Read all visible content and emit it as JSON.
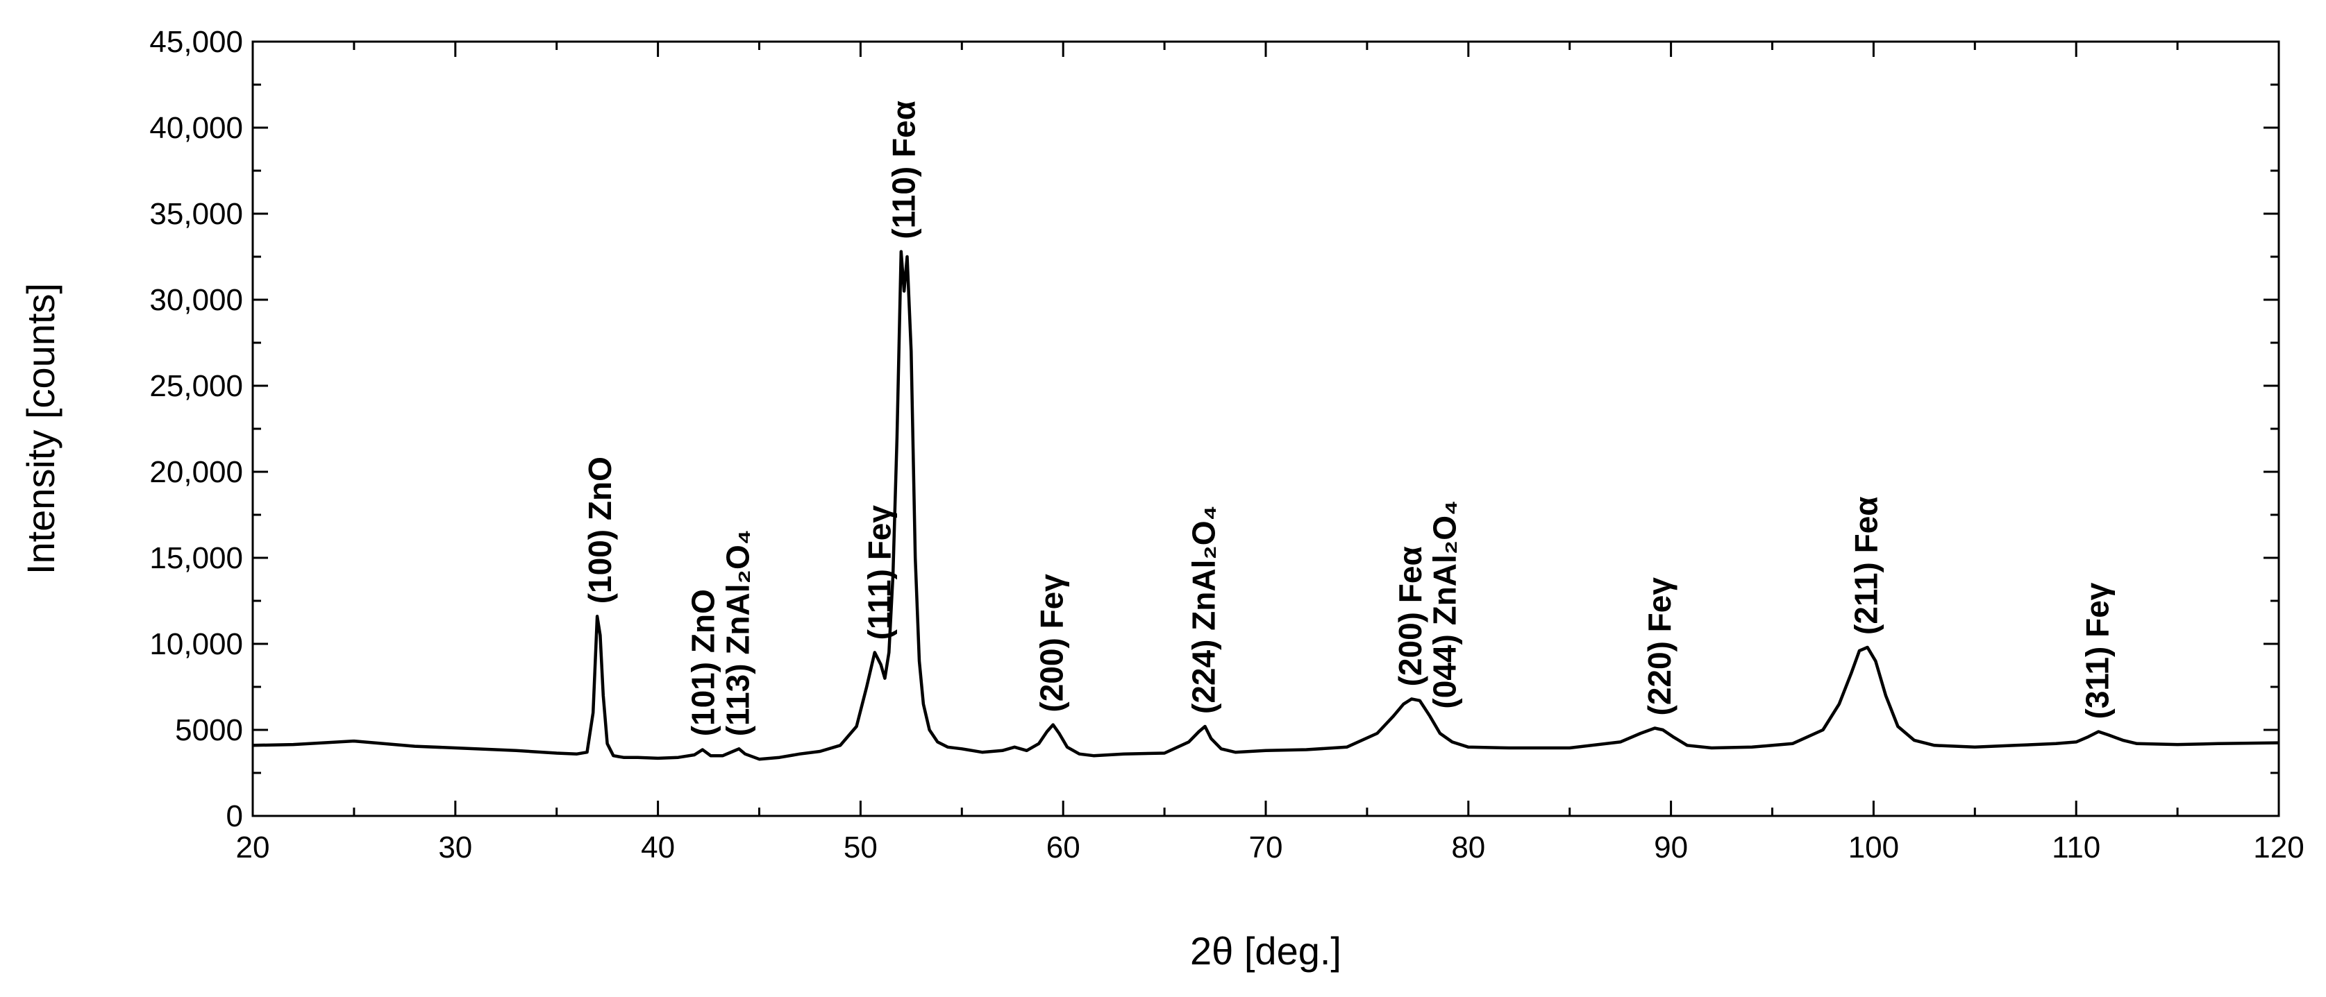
{
  "chart_data": {
    "type": "line",
    "title": "",
    "xlabel": "2θ [deg.]",
    "ylabel": "Intensity [counts]",
    "xlim": [
      20,
      120
    ],
    "ylim": [
      0,
      45000
    ],
    "x_ticks": [
      20,
      30,
      40,
      50,
      60,
      70,
      80,
      90,
      100,
      110,
      120
    ],
    "x_tick_labels": [
      "20",
      "30",
      "40",
      "50",
      "60",
      "70",
      "80",
      "90",
      "100",
      "110",
      "120"
    ],
    "y_ticks": [
      0,
      5000,
      10000,
      15000,
      20000,
      25000,
      30000,
      35000,
      40000,
      45000
    ],
    "y_tick_labels": [
      "0",
      "5000",
      "10,000",
      "15,000",
      "20,000",
      "25,000",
      "30,000",
      "35,000",
      "40,000",
      "45,000"
    ],
    "grid": false,
    "legend": "none",
    "series": [
      {
        "color": "#000000",
        "x": [
          20,
          22,
          25,
          28,
          30,
          33,
          35,
          36,
          36.5,
          36.8,
          37.0,
          37.15,
          37.3,
          37.5,
          37.8,
          38.3,
          39,
          40,
          41,
          41.8,
          42.2,
          42.6,
          43.2,
          43.7,
          44.0,
          44.3,
          45,
          46,
          47,
          48,
          49,
          49.8,
          50.3,
          50.7,
          51.0,
          51.2,
          51.4,
          51.6,
          51.8,
          52.0,
          52.15,
          52.3,
          52.5,
          52.7,
          52.9,
          53.1,
          53.4,
          53.8,
          54.3,
          55,
          56,
          57,
          57.6,
          58.2,
          58.8,
          59.2,
          59.5,
          59.8,
          60.2,
          60.8,
          61.5,
          63,
          65,
          66.2,
          66.7,
          67.0,
          67.3,
          67.8,
          68.5,
          70,
          72,
          74,
          75.5,
          76.3,
          76.8,
          77.2,
          77.6,
          78.1,
          78.6,
          79.2,
          80,
          82,
          85,
          87.5,
          88.5,
          89.2,
          89.6,
          90.1,
          90.8,
          92,
          94,
          96,
          97.5,
          98.3,
          98.9,
          99.3,
          99.7,
          100.1,
          100.6,
          101.2,
          102,
          103,
          105,
          107,
          109,
          110,
          110.6,
          111.1,
          111.6,
          112.3,
          113,
          115,
          117,
          120
        ],
        "y": [
          4100,
          4150,
          4350,
          4050,
          3950,
          3800,
          3650,
          3600,
          3700,
          6000,
          11600,
          10500,
          7000,
          4200,
          3500,
          3400,
          3400,
          3350,
          3400,
          3550,
          3850,
          3500,
          3500,
          3750,
          3900,
          3600,
          3300,
          3400,
          3600,
          3750,
          4100,
          5200,
          7500,
          9500,
          8800,
          8000,
          9500,
          14000,
          22000,
          32800,
          30500,
          32500,
          27000,
          15000,
          9000,
          6500,
          5000,
          4300,
          4000,
          3900,
          3700,
          3800,
          4000,
          3800,
          4200,
          4900,
          5300,
          4800,
          4000,
          3600,
          3500,
          3600,
          3650,
          4300,
          4900,
          5200,
          4500,
          3900,
          3700,
          3800,
          3850,
          4000,
          4800,
          5800,
          6500,
          6800,
          6700,
          5800,
          4800,
          4300,
          4000,
          3950,
          3950,
          4300,
          4800,
          5100,
          5000,
          4600,
          4100,
          3950,
          4000,
          4200,
          5000,
          6500,
          8300,
          9600,
          9800,
          9000,
          7000,
          5200,
          4400,
          4100,
          4000,
          4100,
          4200,
          4300,
          4600,
          4900,
          4700,
          4400,
          4200,
          4150,
          4200,
          4250
        ]
      }
    ],
    "annotations": [
      {
        "x": 37.2,
        "y": 11600,
        "label": "(100) ZnO"
      },
      {
        "x": 42.3,
        "y": 3900,
        "label": "(101) ZnO"
      },
      {
        "x": 44.0,
        "y": 3900,
        "label": "(113) ZnAl₂O₄"
      },
      {
        "x": 51.0,
        "y": 9500,
        "label": "(111) Feγ"
      },
      {
        "x": 52.2,
        "y": 32800,
        "label": "(110) Feα"
      },
      {
        "x": 59.5,
        "y": 5300,
        "label": "(200) Feγ"
      },
      {
        "x": 67.0,
        "y": 5200,
        "label": "(224) ZnAl₂O₄"
      },
      {
        "x": 77.2,
        "y": 6800,
        "label": "(200) Feα"
      },
      {
        "x": 78.9,
        "y": 5500,
        "label": "(044) ZnAl₂O₄"
      },
      {
        "x": 89.5,
        "y": 5100,
        "label": "(220) Feγ"
      },
      {
        "x": 99.7,
        "y": 9800,
        "label": "(211) Feα"
      },
      {
        "x": 111.1,
        "y": 4900,
        "label": "(311) Feγ"
      }
    ]
  }
}
